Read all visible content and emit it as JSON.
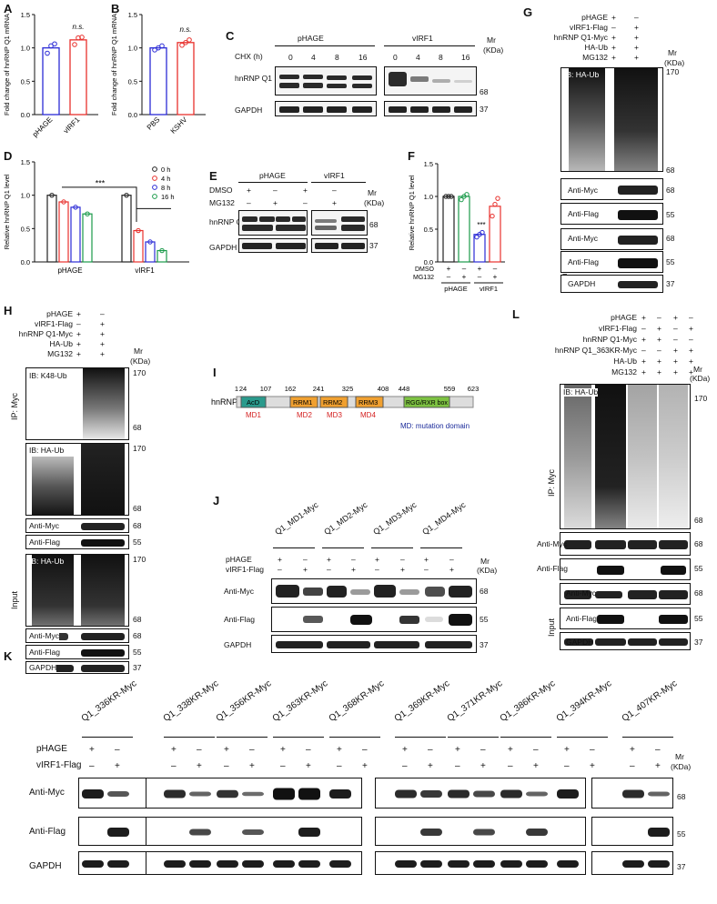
{
  "panels": {
    "A": "A",
    "B": "B",
    "C": "C",
    "D": "D",
    "E": "E",
    "F": "F",
    "G": "G",
    "H": "H",
    "I": "I",
    "J": "J",
    "K": "K",
    "L": "L"
  },
  "common": {
    "pHAGE": "pHAGE",
    "vIRF1": "vIRF1",
    "vIRF1_Flag": "vIRF1-Flag",
    "mr": "Mr",
    "kda": "(KDa)",
    "plus": "+",
    "minus": "–",
    "ns": "n.s.",
    "sig": "***",
    "gapdh": "GAPDH",
    "anti_myc": "Anti-Myc",
    "anti_flag": "Anti-Flag",
    "ip_myc": "IP: Myc",
    "input": "Input",
    "ib_ha_ub": "IB: HA-Ub",
    "ib_k48_ub": "IB: K48-Ub",
    "hnrnp_q1": "hnRNP Q1",
    "hnrnp_q1_myc": "hnRNP Q1-Myc",
    "hnrnp_q1_363kr": "hnRNP Q1_363KR-Myc",
    "ha_ub": "HA-Ub",
    "mg132": "MG132",
    "dmso": "DMSO",
    "cycloheximide": "CHX (h)",
    "pbs": "PBS",
    "kshv": "KSHV"
  },
  "mw": {
    "m170": "170",
    "m68": "68",
    "m55": "55",
    "m37": "37"
  },
  "chart_data": [
    {
      "panel": "A",
      "type": "bar",
      "categories": [
        "pHAGE",
        "vIRF1"
      ],
      "values": [
        1.0,
        1.12
      ],
      "points": [
        [
          0.92,
          1.03,
          1.06
        ],
        [
          1.05,
          1.15,
          1.16
        ]
      ],
      "ylabel": "Fold change of hnRNP Q1 mRNA",
      "ylim": [
        0,
        1.5
      ],
      "yticks": [
        "0.0",
        "0.5",
        "1.0",
        "1.5"
      ],
      "annotation": "n.s.",
      "colors": [
        "#2b2bd6",
        "#e8312d"
      ]
    },
    {
      "panel": "B",
      "type": "bar",
      "categories": [
        "PBS",
        "KSHV"
      ],
      "values": [
        1.0,
        1.08
      ],
      "points": [
        [
          0.97,
          1.0,
          1.03
        ],
        [
          1.04,
          1.08,
          1.12
        ]
      ],
      "ylabel": "Fold change of hnRNP Q1 mRNA",
      "ylim": [
        0,
        1.5
      ],
      "yticks": [
        "0.0",
        "0.5",
        "1.0",
        "1.5"
      ],
      "annotation": "n.s.",
      "colors": [
        "#2b2bd6",
        "#e8312d"
      ]
    },
    {
      "panel": "D",
      "type": "bar",
      "categories": [
        "pHAGE",
        "vIRF1"
      ],
      "series": [
        {
          "name": "0 h",
          "values": [
            1.0,
            1.0
          ],
          "color": "#222222"
        },
        {
          "name": "4 h",
          "values": [
            0.9,
            0.47
          ],
          "color": "#e8312d"
        },
        {
          "name": "8 h",
          "values": [
            0.82,
            0.3
          ],
          "color": "#2b2bd6"
        },
        {
          "name": "16 h",
          "values": [
            0.72,
            0.17
          ],
          "color": "#1a9a4a"
        }
      ],
      "ylabel": "Relative hnRNP Q1 level",
      "ylim": [
        0,
        1.5
      ],
      "yticks": [
        "0.0",
        "0.5",
        "1.0",
        "1.5"
      ],
      "annotation": "***"
    },
    {
      "panel": "F",
      "type": "bar",
      "groups": [
        "pHAGE",
        "vIRF1"
      ],
      "values": [
        1.0,
        1.0,
        0.42,
        0.85
      ],
      "points": [
        [
          1.0,
          1.0,
          1.0
        ],
        [
          0.95,
          1.0,
          1.03
        ],
        [
          0.38,
          0.42,
          0.45
        ],
        [
          0.7,
          0.88,
          0.97
        ]
      ],
      "colors": [
        "#222222",
        "#1a9a4a",
        "#2b2bd6",
        "#e8312d"
      ],
      "ylabel": "Relative hnRNP Q1 level",
      "ylim": [
        0,
        1.5
      ],
      "yticks": [
        "0.0",
        "0.5",
        "1.0",
        "1.5"
      ],
      "annotation": "***",
      "row_dmso": [
        "+",
        "–",
        "+",
        "–"
      ],
      "row_mg132": [
        "–",
        "+",
        "–",
        "+"
      ]
    }
  ],
  "C": {
    "times": [
      "0",
      "4",
      "8",
      "16",
      "0",
      "4",
      "8",
      "16"
    ]
  },
  "E": {
    "dmso": [
      "+",
      "–",
      "+",
      "–"
    ],
    "mg": [
      "–",
      "+",
      "–",
      "+"
    ]
  },
  "G": {
    "rows": [
      {
        "label": "pHAGE",
        "v": [
          "+",
          "–"
        ]
      },
      {
        "label": "vIRF1-Flag",
        "v": [
          "–",
          "+"
        ]
      },
      {
        "label": "hnRNP Q1-Myc",
        "v": [
          "+",
          "+"
        ]
      },
      {
        "label": "HA-Ub",
        "v": [
          "+",
          "+"
        ]
      },
      {
        "label": "MG132",
        "v": [
          "+",
          "+"
        ]
      }
    ]
  },
  "H": {
    "rows": [
      {
        "label": "pHAGE",
        "v": [
          "+",
          "–"
        ]
      },
      {
        "label": "vIRF1-Flag",
        "v": [
          "–",
          "+"
        ]
      },
      {
        "label": "hnRNP Q1-Myc",
        "v": [
          "+",
          "+"
        ]
      },
      {
        "label": "HA-Ub",
        "v": [
          "+",
          "+"
        ]
      },
      {
        "label": "MG132",
        "v": [
          "+",
          "+"
        ]
      }
    ]
  },
  "L": {
    "rows": [
      {
        "label": "pHAGE",
        "v": [
          "+",
          "–",
          "+",
          "–"
        ]
      },
      {
        "label": "vIRF1-Flag",
        "v": [
          "–",
          "+",
          "–",
          "+"
        ]
      },
      {
        "label": "hnRNP Q1-Myc",
        "v": [
          "+",
          "+",
          "–",
          "–"
        ]
      },
      {
        "label": "hnRNP Q1_363KR-Myc",
        "v": [
          "–",
          "–",
          "+",
          "+"
        ]
      },
      {
        "label": "HA-Ub",
        "v": [
          "+",
          "+",
          "+",
          "+"
        ]
      },
      {
        "label": "MG132",
        "v": [
          "+",
          "+",
          "+",
          "+"
        ]
      }
    ]
  },
  "I": {
    "protein": "hnRNP Q1",
    "nums": [
      "1",
      "24",
      "107",
      "162",
      "241",
      "325",
      "408",
      "448",
      "559",
      "623"
    ],
    "domains": [
      "AcD",
      "RRM1",
      "RRM2",
      "RRM3",
      "RGG/RXR box"
    ],
    "mds": [
      "MD1",
      "MD2",
      "MD3",
      "MD4"
    ],
    "legend": "MD: mutation domain",
    "colors": {
      "acd": "#2a9a8c",
      "rrm": "#f0a030",
      "rgg": "#7dc242",
      "md": "#d42020",
      "legend": "#1a2a9a"
    }
  },
  "J": {
    "constructs": [
      "Q1_MD1-Myc",
      "Q1_MD2-Myc",
      "Q1_MD3-Myc",
      "Q1_MD4-Myc"
    ],
    "phage": [
      "+",
      "–",
      "+",
      "–",
      "+",
      "–",
      "+",
      "–"
    ],
    "virf": [
      "–",
      "+",
      "–",
      "+",
      "–",
      "+",
      "–",
      "+"
    ]
  },
  "K": {
    "constructs": [
      "Q1_336KR-Myc",
      "Q1_338KR-Myc",
      "Q1_356KR-Myc",
      "Q1_363KR-Myc",
      "Q1_368KR-Myc",
      "Q1_369KR-Myc",
      "Q1_371KR-Myc",
      "Q1_386KR-Myc",
      "Q1_394KR-Myc",
      "Q1_407KR-Myc"
    ]
  }
}
